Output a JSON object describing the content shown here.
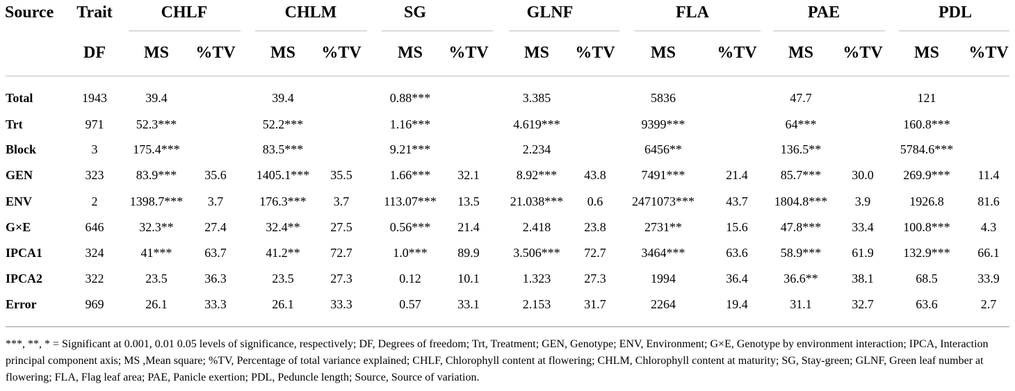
{
  "table": {
    "header": {
      "source": "Source",
      "trait": "Trait",
      "df": "DF",
      "traits": [
        "CHLF",
        "CHLM",
        "SG",
        "GLNF",
        "FLA",
        "PAE",
        "PDL"
      ],
      "ms": "MS",
      "tv": "%TV"
    },
    "rows": [
      {
        "label": "Total",
        "df": "1943",
        "vals": [
          [
            "39.4",
            ""
          ],
          [
            "39.4",
            ""
          ],
          [
            "0.88***",
            ""
          ],
          [
            "3.385",
            ""
          ],
          [
            "5836",
            ""
          ],
          [
            "47.7",
            ""
          ],
          [
            "121",
            ""
          ]
        ]
      },
      {
        "label": "Trt",
        "df": "971",
        "vals": [
          [
            "52.3***",
            ""
          ],
          [
            "52.2***",
            ""
          ],
          [
            "1.16***",
            ""
          ],
          [
            "4.619***",
            ""
          ],
          [
            "9399***",
            ""
          ],
          [
            "64***",
            ""
          ],
          [
            "160.8***",
            ""
          ]
        ]
      },
      {
        "label": "Block",
        "df": "3",
        "vals": [
          [
            "175.4***",
            ""
          ],
          [
            "83.5***",
            ""
          ],
          [
            "9.21***",
            ""
          ],
          [
            "2.234",
            ""
          ],
          [
            "6456**",
            ""
          ],
          [
            "136.5**",
            ""
          ],
          [
            "5784.6***",
            ""
          ]
        ]
      },
      {
        "label": "GEN",
        "df": "323",
        "vals": [
          [
            "83.9***",
            "35.6"
          ],
          [
            "1405.1***",
            "35.5"
          ],
          [
            "1.66***",
            "32.1"
          ],
          [
            "8.92***",
            "43.8"
          ],
          [
            "7491***",
            "21.4"
          ],
          [
            "85.7***",
            "30.0"
          ],
          [
            "269.9***",
            "11.4"
          ]
        ]
      },
      {
        "label": "ENV",
        "df": "2",
        "vals": [
          [
            "1398.7***",
            "3.7"
          ],
          [
            "176.3***",
            "3.7"
          ],
          [
            "113.07***",
            "13.5"
          ],
          [
            "21.038***",
            "0.6"
          ],
          [
            "2471073***",
            "43.7"
          ],
          [
            "1804.8***",
            "3.9"
          ],
          [
            "1926.8",
            "81.6"
          ]
        ]
      },
      {
        "label": "G×E",
        "df": "646",
        "vals": [
          [
            "32.3**",
            "27.4"
          ],
          [
            "32.4**",
            "27.5"
          ],
          [
            "0.56***",
            "21.4"
          ],
          [
            "2.418",
            "23.8"
          ],
          [
            "2731**",
            "15.6"
          ],
          [
            "47.8***",
            "33.4"
          ],
          [
            "100.8***",
            "4.3"
          ]
        ]
      },
      {
        "label": "IPCA1",
        "df": "324",
        "vals": [
          [
            "41***",
            "63.7"
          ],
          [
            "41.2**",
            "72.7"
          ],
          [
            "1.0***",
            "89.9"
          ],
          [
            "3.506***",
            "72.7"
          ],
          [
            "3464***",
            "63.6"
          ],
          [
            "58.9***",
            "61.9"
          ],
          [
            "132.9***",
            "66.1"
          ]
        ]
      },
      {
        "label": "IPCA2",
        "df": "322",
        "vals": [
          [
            "23.5",
            "36.3"
          ],
          [
            "23.5",
            "27.3"
          ],
          [
            "0.12",
            "10.1"
          ],
          [
            "1.323",
            "27.3"
          ],
          [
            "1994",
            "36.4"
          ],
          [
            "36.6**",
            "38.1"
          ],
          [
            "68.5",
            "33.9"
          ]
        ]
      },
      {
        "label": "Error",
        "df": "969",
        "vals": [
          [
            "26.1",
            "33.3"
          ],
          [
            "26.1",
            "33.3"
          ],
          [
            "0.57",
            "33.1"
          ],
          [
            "2.153",
            "31.7"
          ],
          [
            "2264",
            "19.4"
          ],
          [
            "31.1",
            "32.7"
          ],
          [
            "63.6",
            "2.7"
          ]
        ]
      }
    ]
  },
  "footnote": "***, **, * = Significant at 0.001, 0.01 0.05 levels of significance, respectively; DF, Degrees of freedom; Trt, Treatment; GEN, Genotype; ENV, Environment; G×E, Genotype by environment interaction; IPCA, Interaction principal component axis; MS ,Mean square; %TV, Percentage of total variance explained; CHLF, Chlorophyll content at flowering; CHLM, Chlorophyll content at maturity; SG, Stay-green; GLNF, Green leaf number at flowering; FLA, Flag leaf area; PAE, Panicle exertion; PDL, Peduncle length; Source, Source of variation."
}
